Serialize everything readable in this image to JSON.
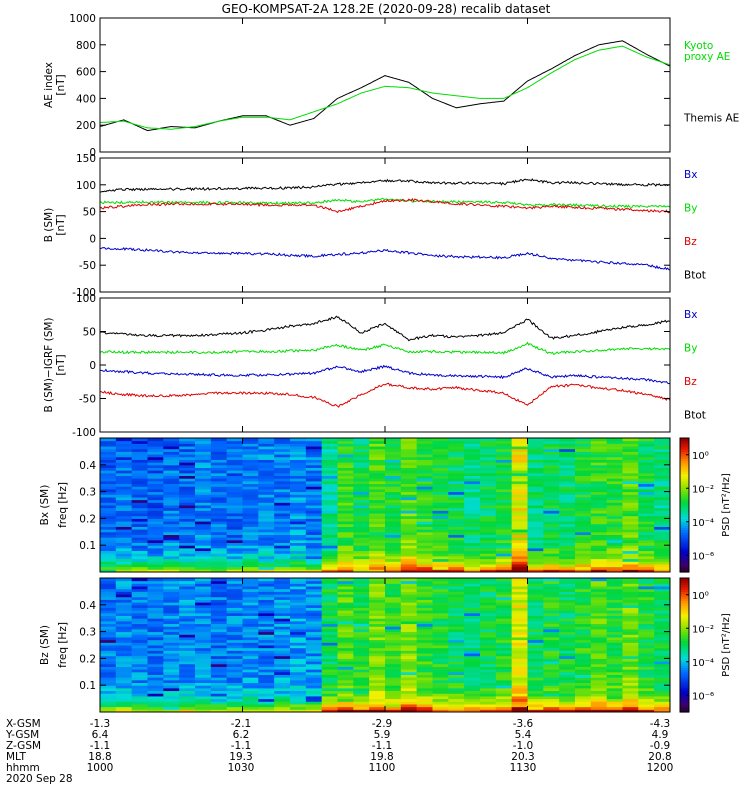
{
  "title": "GEO-KOMPSAT-2A 128.2E (2020-09-28) recalib dataset",
  "time_axis": {
    "start_hhmm": "1000",
    "end_hhmm": "1200",
    "tick_hhmm": [
      "1000",
      "1030",
      "1100",
      "1130",
      "1200"
    ]
  },
  "ephemeris": {
    "row_labels": [
      "X-GSM",
      "Y-GSM",
      "Z-GSM",
      "MLT",
      "hhmm"
    ],
    "rows": [
      [
        "-1.3",
        "-2.1",
        "-2.9",
        "-3.6",
        "-4.3"
      ],
      [
        "6.4",
        "6.2",
        "5.9",
        "5.4",
        "4.9"
      ],
      [
        "-1.1",
        "-1.1",
        "-1.1",
        "-1.0",
        "-0.9"
      ],
      [
        "18.8",
        "19.3",
        "19.8",
        "20.3",
        "20.8"
      ],
      [
        "1000",
        "1030",
        "1100",
        "1130",
        "1200"
      ]
    ],
    "date_label": "2020 Sep 28"
  },
  "colors": {
    "black": "#000000",
    "green": "#00dd00",
    "red": "#dd0000",
    "blue": "#0000cc"
  },
  "chart_data": [
    {
      "type": "line",
      "panel": "ae",
      "ylabel_lines": [
        "AE index",
        "[nT]"
      ],
      "ylim": [
        0,
        1000
      ],
      "yticks": [
        0,
        200,
        400,
        600,
        800,
        1000
      ],
      "series": [
        {
          "name": "Themis AE",
          "color": "#000000",
          "x": [
            "10:00",
            "10:05",
            "10:10",
            "10:15",
            "10:20",
            "10:25",
            "10:30",
            "10:35",
            "10:40",
            "10:45",
            "10:50",
            "10:55",
            "11:00",
            "11:05",
            "11:10",
            "11:15",
            "11:20",
            "11:25",
            "11:30",
            "11:35",
            "11:40",
            "11:45",
            "11:50",
            "11:55",
            "12:00"
          ],
          "values": [
            190,
            240,
            160,
            190,
            180,
            230,
            270,
            270,
            200,
            250,
            400,
            480,
            570,
            520,
            400,
            330,
            360,
            380,
            530,
            620,
            720,
            800,
            830,
            730,
            640
          ]
        },
        {
          "name": "Kyoto proxy AE",
          "color": "#00dd00",
          "x": [
            "10:00",
            "10:05",
            "10:10",
            "10:15",
            "10:20",
            "10:25",
            "10:30",
            "10:35",
            "10:40",
            "10:45",
            "10:50",
            "10:55",
            "11:00",
            "11:05",
            "11:10",
            "11:15",
            "11:20",
            "11:25",
            "11:30",
            "11:35",
            "11:40",
            "11:45",
            "11:50",
            "11:55",
            "12:00"
          ],
          "values": [
            220,
            230,
            180,
            170,
            190,
            230,
            260,
            260,
            240,
            300,
            360,
            440,
            490,
            480,
            440,
            420,
            400,
            400,
            480,
            590,
            690,
            760,
            790,
            710,
            650
          ]
        }
      ],
      "legend": [
        {
          "lines": [
            "Kyoto",
            "proxy AE"
          ],
          "color": "#00dd00"
        },
        {
          "lines": [
            "Themis AE"
          ],
          "color": "#000000"
        }
      ]
    },
    {
      "type": "line",
      "panel": "b_sm",
      "ylabel_lines": [
        "B (SM)",
        "[nT]"
      ],
      "ylim": [
        -100,
        150
      ],
      "yticks": [
        -100,
        -50,
        0,
        50,
        100,
        150
      ],
      "series": [
        {
          "name": "Btot",
          "color": "#000000",
          "x": [
            "10:00",
            "10:05",
            "10:10",
            "10:15",
            "10:20",
            "10:25",
            "10:30",
            "10:35",
            "10:40",
            "10:45",
            "10:50",
            "10:55",
            "11:00",
            "11:05",
            "11:10",
            "11:15",
            "11:20",
            "11:25",
            "11:30",
            "11:35",
            "11:40",
            "11:45",
            "11:50",
            "11:55",
            "12:00"
          ],
          "values": [
            88,
            91,
            92,
            92,
            92,
            93,
            93,
            94,
            94,
            96,
            101,
            104,
            108,
            107,
            104,
            103,
            103,
            102,
            110,
            104,
            104,
            102,
            100,
            100,
            100
          ]
        },
        {
          "name": "By",
          "color": "#00dd00",
          "x": [
            "10:00",
            "10:05",
            "10:10",
            "10:15",
            "10:20",
            "10:25",
            "10:30",
            "10:35",
            "10:40",
            "10:45",
            "10:50",
            "10:55",
            "11:00",
            "11:05",
            "11:10",
            "11:15",
            "11:20",
            "11:25",
            "11:30",
            "11:35",
            "11:40",
            "11:45",
            "11:50",
            "11:55",
            "12:00"
          ],
          "values": [
            67,
            67,
            68,
            67,
            67,
            67,
            67,
            66,
            66,
            66,
            72,
            68,
            74,
            70,
            69,
            68,
            68,
            67,
            62,
            63,
            62,
            61,
            60,
            60,
            60
          ]
        },
        {
          "name": "Bz",
          "color": "#dd0000",
          "x": [
            "10:00",
            "10:05",
            "10:10",
            "10:15",
            "10:20",
            "10:25",
            "10:30",
            "10:35",
            "10:40",
            "10:45",
            "10:50",
            "10:55",
            "11:00",
            "11:05",
            "11:10",
            "11:15",
            "11:20",
            "11:25",
            "11:30",
            "11:35",
            "11:40",
            "11:45",
            "11:50",
            "11:55",
            "12:00"
          ],
          "values": [
            57,
            60,
            63,
            64,
            64,
            64,
            64,
            62,
            62,
            62,
            50,
            60,
            70,
            72,
            69,
            65,
            62,
            60,
            56,
            60,
            58,
            56,
            54,
            52,
            50
          ]
        },
        {
          "name": "Bx",
          "color": "#0000cc",
          "x": [
            "10:00",
            "10:05",
            "10:10",
            "10:15",
            "10:20",
            "10:25",
            "10:30",
            "10:35",
            "10:40",
            "10:45",
            "10:50",
            "10:55",
            "11:00",
            "11:05",
            "11:10",
            "11:15",
            "11:20",
            "11:25",
            "11:30",
            "11:35",
            "11:40",
            "11:45",
            "11:50",
            "11:55",
            "12:00"
          ],
          "values": [
            -18,
            -20,
            -22,
            -25,
            -27,
            -28,
            -28,
            -29,
            -31,
            -33,
            -30,
            -27,
            -22,
            -27,
            -32,
            -34,
            -35,
            -36,
            -28,
            -37,
            -41,
            -44,
            -47,
            -50,
            -58
          ]
        }
      ],
      "legend": [
        {
          "lines": [
            "Bx"
          ],
          "color": "#0000cc"
        },
        {
          "lines": [
            "By"
          ],
          "color": "#00dd00"
        },
        {
          "lines": [
            "Bz"
          ],
          "color": "#dd0000"
        },
        {
          "lines": [
            "Btot"
          ],
          "color": "#000000"
        }
      ]
    },
    {
      "type": "line",
      "panel": "b_igrf",
      "ylabel_lines": [
        "B (SM)−IGRF (SM)",
        "[nT]"
      ],
      "ylim": [
        -100,
        100
      ],
      "yticks": [
        -100,
        -50,
        0,
        50,
        100
      ],
      "series": [
        {
          "name": "Btot",
          "color": "#000000",
          "x": [
            "10:00",
            "10:05",
            "10:10",
            "10:15",
            "10:20",
            "10:25",
            "10:30",
            "10:35",
            "10:40",
            "10:45",
            "10:50",
            "10:55",
            "11:00",
            "11:05",
            "11:10",
            "11:15",
            "11:20",
            "11:25",
            "11:30",
            "11:35",
            "11:40",
            "11:45",
            "11:50",
            "11:55",
            "12:00"
          ],
          "values": [
            48,
            46,
            44,
            44,
            44,
            46,
            48,
            52,
            58,
            62,
            72,
            48,
            62,
            38,
            44,
            42,
            44,
            48,
            68,
            40,
            44,
            50,
            56,
            60,
            66
          ]
        },
        {
          "name": "By",
          "color": "#00dd00",
          "x": [
            "10:00",
            "10:05",
            "10:10",
            "10:15",
            "10:20",
            "10:25",
            "10:30",
            "10:35",
            "10:40",
            "10:45",
            "10:50",
            "10:55",
            "11:00",
            "11:05",
            "11:10",
            "11:15",
            "11:20",
            "11:25",
            "11:30",
            "11:35",
            "11:40",
            "11:45",
            "11:50",
            "11:55",
            "12:00"
          ],
          "values": [
            20,
            19,
            19,
            19,
            19,
            19,
            20,
            20,
            21,
            22,
            30,
            22,
            30,
            20,
            20,
            19,
            19,
            18,
            32,
            17,
            20,
            22,
            24,
            24,
            24
          ]
        },
        {
          "name": "Bx",
          "color": "#0000cc",
          "x": [
            "10:00",
            "10:05",
            "10:10",
            "10:15",
            "10:20",
            "10:25",
            "10:30",
            "10:35",
            "10:40",
            "10:45",
            "10:50",
            "10:55",
            "11:00",
            "11:05",
            "11:10",
            "11:15",
            "11:20",
            "11:25",
            "11:30",
            "11:35",
            "11:40",
            "11:45",
            "11:50",
            "11:55",
            "12:00"
          ],
          "values": [
            -8,
            -10,
            -12,
            -13,
            -14,
            -15,
            -15,
            -15,
            -14,
            -12,
            -2,
            -10,
            -2,
            -12,
            -15,
            -16,
            -17,
            -18,
            -5,
            -18,
            -16,
            -18,
            -20,
            -22,
            -27
          ]
        },
        {
          "name": "Bz",
          "color": "#dd0000",
          "x": [
            "10:00",
            "10:05",
            "10:10",
            "10:15",
            "10:20",
            "10:25",
            "10:30",
            "10:35",
            "10:40",
            "10:45",
            "10:50",
            "10:55",
            "11:00",
            "11:05",
            "11:10",
            "11:15",
            "11:20",
            "11:25",
            "11:30",
            "11:35",
            "11:40",
            "11:45",
            "11:50",
            "11:55",
            "12:00"
          ],
          "values": [
            -40,
            -44,
            -46,
            -46,
            -44,
            -42,
            -42,
            -42,
            -44,
            -48,
            -62,
            -44,
            -28,
            -34,
            -36,
            -34,
            -38,
            -42,
            -60,
            -32,
            -30,
            -34,
            -38,
            -44,
            -52
          ]
        }
      ],
      "legend": [
        {
          "lines": [
            "Bx"
          ],
          "color": "#0000cc"
        },
        {
          "lines": [
            "By"
          ],
          "color": "#00dd00"
        },
        {
          "lines": [
            "Bz"
          ],
          "color": "#dd0000"
        },
        {
          "lines": [
            "Btot"
          ],
          "color": "#000000"
        }
      ]
    },
    {
      "type": "heatmap",
      "panel": "bx_spec",
      "ylabel_lines": [
        "Bx (SM)",
        "freq [Hz]"
      ],
      "ylim": [
        0,
        0.5
      ],
      "yticks": [
        0.1,
        0.2,
        0.3,
        0.4
      ],
      "ytick_labels": [
        "0.1",
        "0.2",
        "0.3",
        "0.4"
      ],
      "colorbar": {
        "label": "PSD [nT²/Hz]",
        "log_range": [
          -7,
          1
        ],
        "tick_labels": [
          "10⁰",
          "10⁻²",
          "10⁻⁴",
          "10⁻⁶"
        ],
        "tick_log_values": [
          0,
          -2,
          -4,
          -6
        ]
      },
      "time_bins": 36,
      "freq_bins": 50,
      "activity": [
        -4.8,
        -4.6,
        -4.7,
        -4.8,
        -4.6,
        -4.7,
        -4.5,
        -4.6,
        -4.7,
        -4.6,
        -4.5,
        -4.6,
        -4.4,
        -4.6,
        -3.4,
        -2.6,
        -3.0,
        -2.4,
        -2.8,
        -2.2,
        -2.6,
        -2.8,
        -3.0,
        -3.2,
        -3.0,
        -2.8,
        -1.2,
        -3.2,
        -3.0,
        -3.1,
        -2.8,
        -2.6,
        -2.7,
        -2.4,
        -2.9,
        -3.2
      ]
    },
    {
      "type": "heatmap",
      "panel": "bz_spec",
      "ylabel_lines": [
        "Bz (SM)",
        "freq [Hz]"
      ],
      "ylim": [
        0,
        0.5
      ],
      "yticks": [
        0.1,
        0.2,
        0.3,
        0.4
      ],
      "ytick_labels": [
        "0.1",
        "0.2",
        "0.3",
        "0.4"
      ],
      "colorbar": {
        "label": "PSD [nT²/Hz]",
        "log_range": [
          -7,
          1
        ],
        "tick_labels": [
          "10⁰",
          "10⁻²",
          "10⁻⁴",
          "10⁻⁶"
        ],
        "tick_log_values": [
          0,
          -2,
          -4,
          -6
        ]
      },
      "time_bins": 36,
      "freq_bins": 50,
      "activity": [
        -4.6,
        -4.4,
        -4.5,
        -4.6,
        -4.5,
        -4.4,
        -4.5,
        -4.6,
        -4.5,
        -4.4,
        -4.5,
        -4.4,
        -4.3,
        -4.4,
        -3.0,
        -2.4,
        -2.8,
        -2.2,
        -2.6,
        -2.0,
        -2.6,
        -2.8,
        -3.0,
        -3.1,
        -3.0,
        -2.8,
        -1.4,
        -3.0,
        -2.8,
        -3.0,
        -2.7,
        -2.4,
        -2.6,
        -2.2,
        -2.8,
        -3.0
      ]
    }
  ]
}
